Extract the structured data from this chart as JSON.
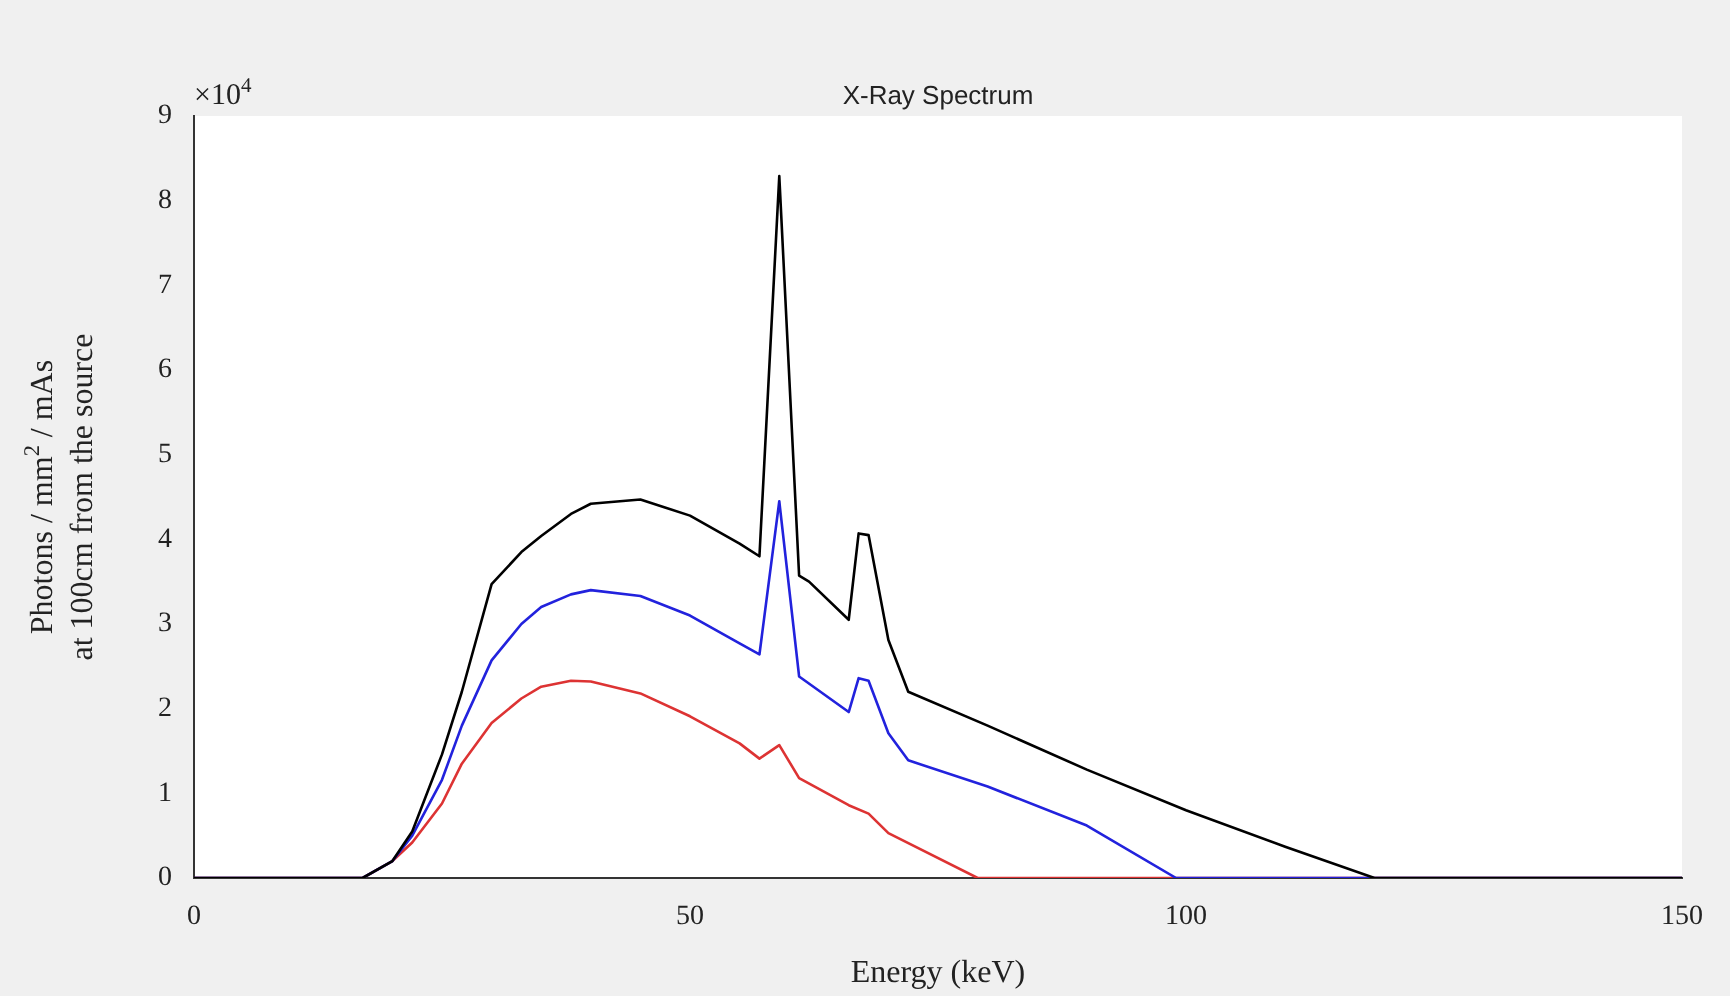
{
  "chart_data": {
    "type": "line",
    "title": "X-Ray Spectrum",
    "xlabel": "Energy (keV)",
    "ylabel": "Photons / mm$^{2}$ / mAs\nat 100cm from the source",
    "annotations": [
      "×10$^{4}$"
    ],
    "series": [
      {
        "color": "#000000",
        "x": [
          0,
          17,
          20,
          22,
          25,
          27,
          30,
          33,
          35,
          38,
          40,
          45,
          50,
          55,
          57,
          59,
          61,
          62,
          66,
          67,
          68,
          70,
          72,
          80,
          90,
          100,
          110,
          119,
          150
        ],
        "values": [
          0,
          0,
          0.2,
          0.55,
          1.46,
          2.2,
          3.47,
          3.85,
          4.04,
          4.3,
          4.42,
          4.47,
          4.28,
          3.95,
          3.8,
          8.29,
          3.57,
          3.5,
          3.05,
          4.07,
          4.05,
          2.81,
          2.2,
          1.8,
          1.28,
          0.8,
          0.37,
          0,
          0
        ]
      },
      {
        "color": "#2222dd",
        "x": [
          0,
          17,
          20,
          22,
          25,
          27,
          30,
          33,
          35,
          38,
          40,
          45,
          50,
          55,
          57,
          59,
          61,
          66,
          67,
          68,
          70,
          72,
          80,
          90,
          99,
          150
        ],
        "values": [
          0,
          0,
          0.2,
          0.5,
          1.16,
          1.8,
          2.57,
          3.0,
          3.2,
          3.35,
          3.4,
          3.33,
          3.1,
          2.77,
          2.64,
          4.45,
          2.38,
          1.96,
          2.36,
          2.33,
          1.71,
          1.39,
          1.08,
          0.62,
          0,
          0
        ]
      },
      {
        "color": "#dd3333",
        "x": [
          0,
          17,
          20,
          22,
          25,
          27,
          30,
          33,
          35,
          38,
          40,
          45,
          50,
          55,
          57,
          59,
          61,
          66,
          68,
          70,
          79,
          150
        ],
        "values": [
          0,
          0,
          0.2,
          0.42,
          0.88,
          1.35,
          1.83,
          2.12,
          2.26,
          2.33,
          2.32,
          2.18,
          1.91,
          1.59,
          1.41,
          1.57,
          1.18,
          0.86,
          0.76,
          0.53,
          0,
          0
        ]
      }
    ],
    "xlim": [
      0,
      150
    ],
    "xticks": [
      0,
      50,
      100,
      150
    ],
    "ylim": [
      0,
      9
    ],
    "yticks": [
      0,
      1,
      2,
      3,
      4,
      5,
      6,
      7,
      8,
      9
    ],
    "grid": false,
    "legend": false,
    "marker": "none",
    "line_style": "solid"
  }
}
